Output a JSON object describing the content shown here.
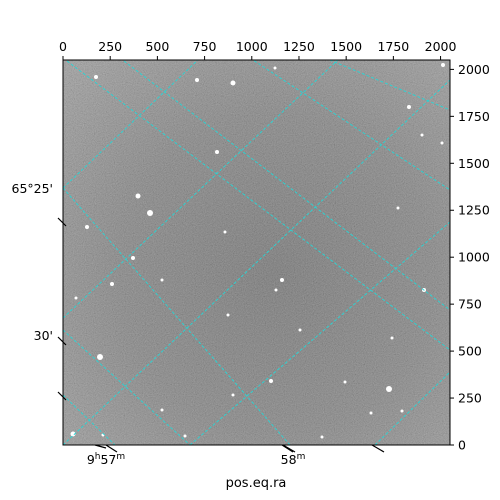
{
  "chart_data": {
    "type": "image",
    "xlabel": "pos.eq.ra",
    "ylabel": "",
    "xlim": [
      0,
      2050
    ],
    "ylim": [
      0,
      2050
    ],
    "pixel_ticks": {
      "top": [
        0,
        250,
        500,
        750,
        1000,
        1250,
        1500,
        1750,
        2000
      ],
      "right": [
        0,
        250,
        500,
        750,
        1000,
        1250,
        1500,
        1750,
        2000
      ]
    },
    "world_ticks": {
      "bottom": [
        "9h57m",
        "58m"
      ],
      "left": [
        "65°25'",
        "30'"
      ]
    },
    "grid": true,
    "colors": {
      "grid": "#2ad4d4",
      "frame": "#000000"
    }
  }
}
